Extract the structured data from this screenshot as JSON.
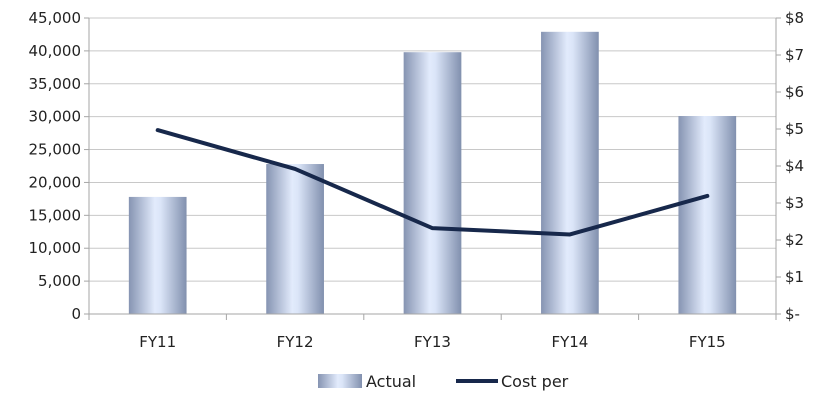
{
  "chart_data": {
    "type": "bar",
    "categories": [
      "FY11",
      "FY12",
      "FY13",
      "FY14",
      "FY15"
    ],
    "series": [
      {
        "name": "Actual",
        "type": "bar",
        "axis": "left",
        "values": [
          17800,
          22800,
          39800,
          42900,
          30100
        ]
      },
      {
        "name": "Cost per",
        "type": "line",
        "axis": "right",
        "values": [
          4.97,
          3.92,
          2.32,
          2.15,
          3.19
        ]
      }
    ],
    "y_left": {
      "min": 0,
      "max": 45000,
      "ticks": [
        "0",
        "5,000",
        "10,000",
        "15,000",
        "20,000",
        "25,000",
        "30,000",
        "35,000",
        "40,000",
        "45,000"
      ]
    },
    "y_right": {
      "min": 0,
      "max": 8,
      "ticks": [
        "$-",
        "$1",
        "$2",
        "$3",
        "$4",
        "$5",
        "$6",
        "$7",
        "$8"
      ]
    },
    "grid": true,
    "legend_position": "bottom-center",
    "colors": {
      "bar_edge": "#8a9ab8",
      "bar_light": "#dfe8fb",
      "line": "#17284b",
      "grid": "#c8c8c8",
      "axis": "#a6a6a6"
    }
  }
}
